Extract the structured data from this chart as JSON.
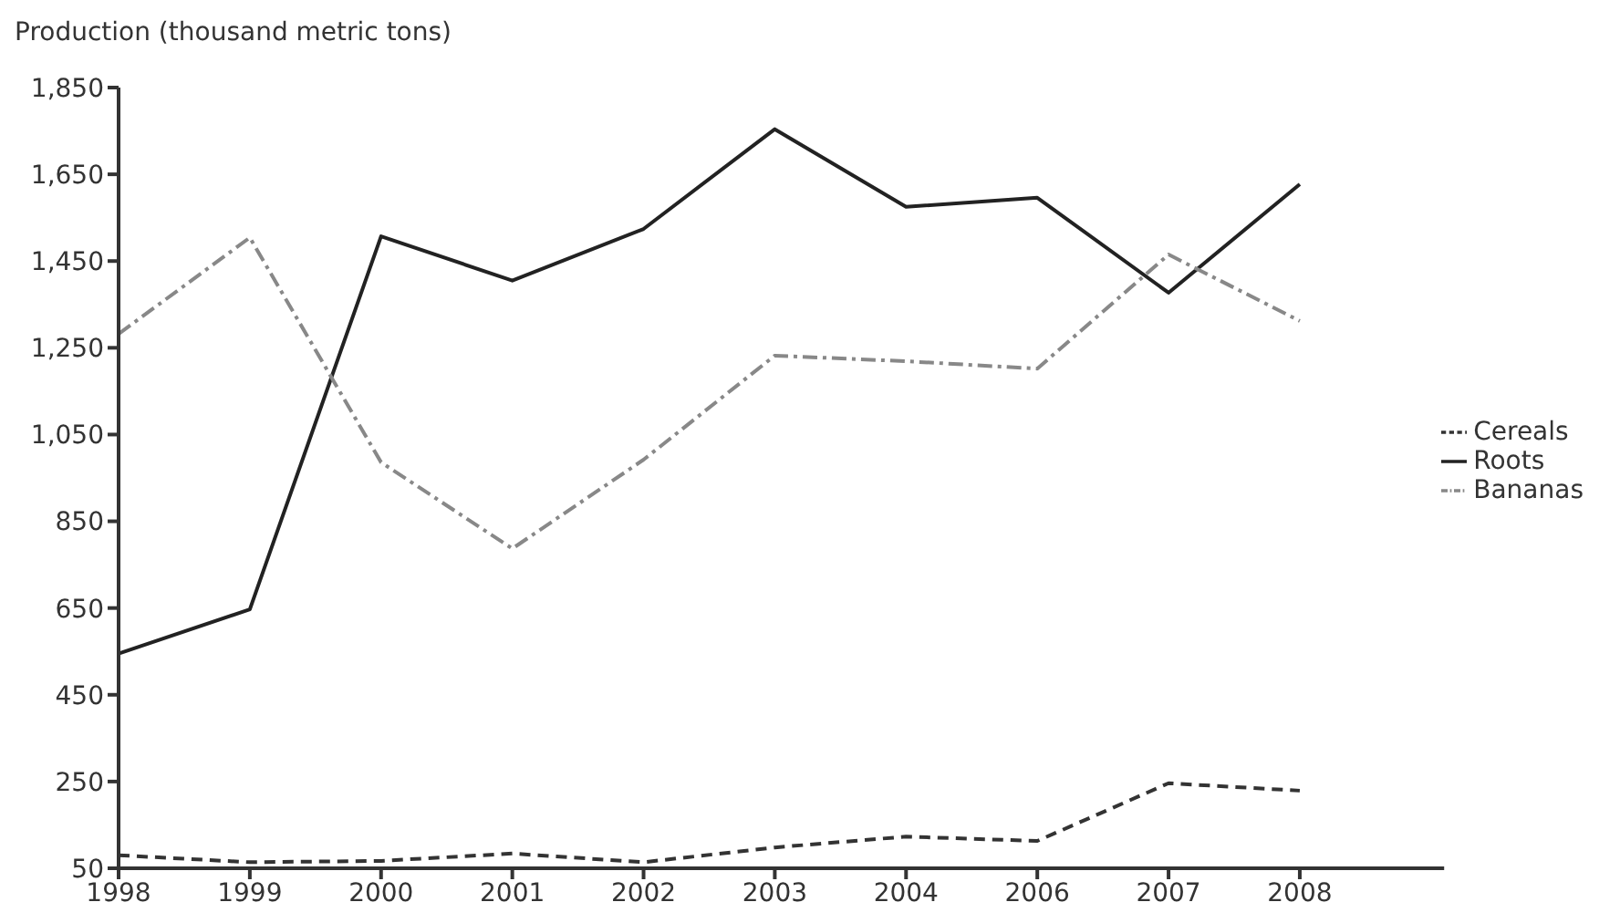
{
  "chart_data": {
    "type": "line",
    "ylabel": "Production (thousand metric tons)",
    "categories": [
      "1998",
      "1999",
      "2000",
      "2001",
      "2002",
      "2003",
      "2004",
      "2006",
      "2007",
      "2008"
    ],
    "series": [
      {
        "name": "Cereals",
        "color": "#333333",
        "line_style": "dashed",
        "values": [
          80,
          64,
          67,
          84,
          64,
          98,
          123,
          113,
          246,
          229
        ]
      },
      {
        "name": "Roots",
        "color": "#222222",
        "line_style": "solid",
        "values": [
          545,
          647,
          1507,
          1405,
          1524,
          1754,
          1575,
          1596,
          1377,
          1627
        ]
      },
      {
        "name": "Bananas",
        "color": "#888888",
        "line_style": "dashdot",
        "values": [
          1282,
          1504,
          986,
          787,
          992,
          1232,
          1219,
          1202,
          1465,
          1312
        ]
      }
    ],
    "ylim": [
      50,
      1850
    ],
    "yticks": [
      50,
      250,
      450,
      650,
      850,
      {
        "value": 1050,
        "label": "1,050"
      },
      {
        "value": 1250,
        "label": "1,250"
      },
      {
        "value": 1450,
        "label": "1,450"
      },
      {
        "value": 1650,
        "label": "1,650"
      },
      {
        "value": 1850,
        "label": "1,850"
      }
    ],
    "legend": "right",
    "grid": false,
    "marker": "none"
  }
}
